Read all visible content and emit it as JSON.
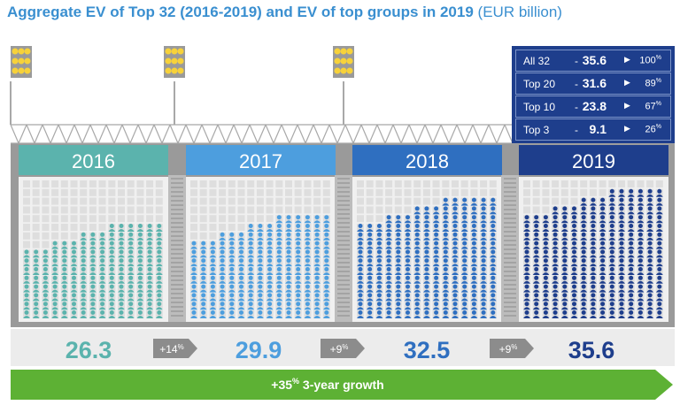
{
  "title": {
    "main": "Aggregate EV of Top 32 (2016-2019) and EV of top groups in 2019",
    "unit": "(EUR billion)"
  },
  "legend": [
    {
      "name": "All 32",
      "sep": "-",
      "value": "35.6",
      "share": "100",
      "share_unit": "%"
    },
    {
      "name": "Top 20",
      "sep": "-",
      "value": "31.6",
      "share": "89",
      "share_unit": "%"
    },
    {
      "name": "Top 10",
      "sep": "-",
      "value": "23.8",
      "share": "67",
      "share_unit": "%"
    },
    {
      "name": "Top 3",
      "sep": "-",
      "value": "9.1",
      "share": "26",
      "share_unit": "%"
    }
  ],
  "total_growth": {
    "value": "+35",
    "unit": "%",
    "label": "3-year growth"
  },
  "colors": {
    "2016": "#5bb3ad",
    "2017": "#4d9ede",
    "2018": "#2f6fc0",
    "2019": "#1e3e8c",
    "growth_arrow": "#5db134",
    "growth_chip": "#8c8c8c"
  },
  "chart_data": {
    "type": "bar",
    "title": "Aggregate EV of Top 32 (2016-2019) and EV of top groups in 2019",
    "categories": [
      "2016",
      "2017",
      "2018",
      "2019"
    ],
    "values": [
      26.3,
      29.9,
      32.5,
      35.6
    ],
    "value_labels": [
      "26.3",
      "29.9",
      "32.5",
      "35.6"
    ],
    "growth": [
      {
        "from": "2016",
        "to": "2017",
        "label": "+14",
        "unit": "%"
      },
      {
        "from": "2017",
        "to": "2018",
        "label": "+9",
        "unit": "%"
      },
      {
        "from": "2018",
        "to": "2019",
        "label": "+9",
        "unit": "%"
      }
    ],
    "ylabel": "",
    "unit": "EUR billion"
  }
}
